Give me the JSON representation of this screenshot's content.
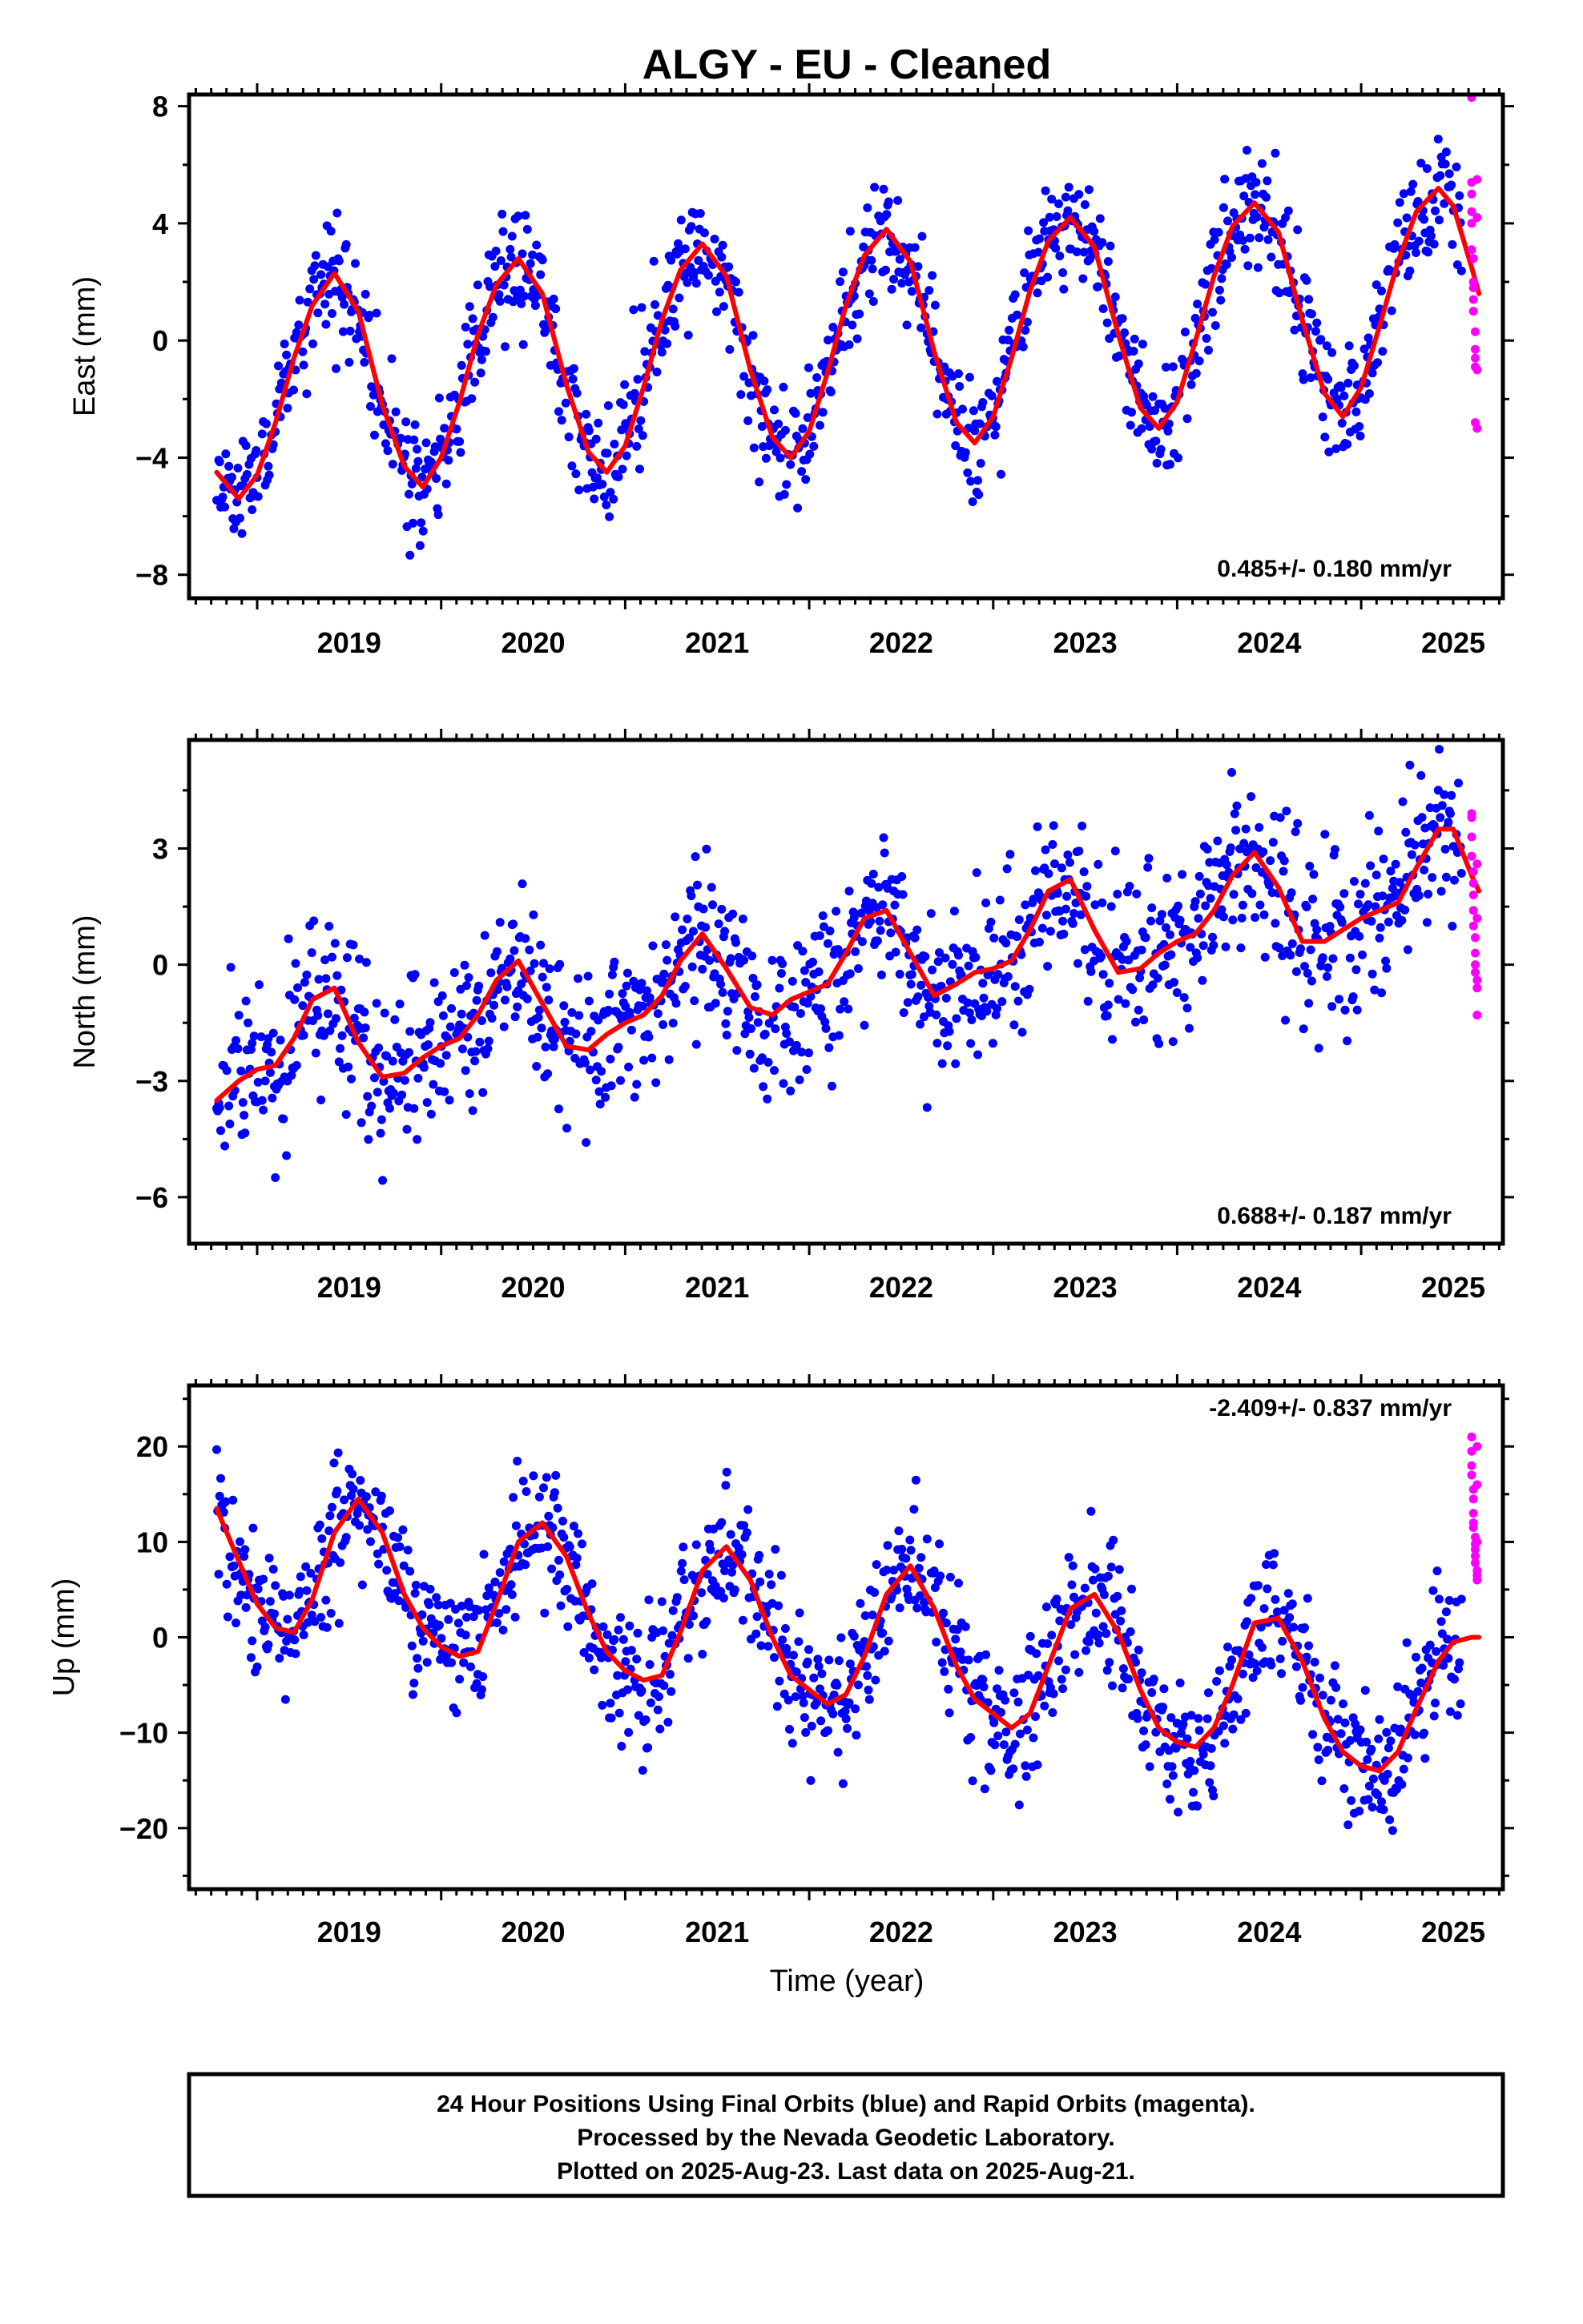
{
  "title": "ALGY  - EU - Cleaned",
  "xlabel": "Time (year)",
  "footer": {
    "line1": "24 Hour Positions Using Final Orbits (blue) and Rapid Orbits (magenta).",
    "line2": "Processed by the Nevada Geodetic Laboratory.",
    "line3": "Plotted on 2025-Aug-23. Last data on 2025-Aug-21."
  },
  "colors": {
    "final": "#0000ff",
    "rapid": "#ff00ff",
    "fit": "#ff0000",
    "frame": "#000000"
  },
  "chart_data": [
    {
      "type": "scatter",
      "component": "east",
      "ylabel": "East (mm)",
      "rate_label": "0.485+/- 0.180 mm/yr",
      "xlim": [
        2018.63,
        2025.77
      ],
      "ylim": [
        -8.8,
        8.4
      ],
      "x_ticks": [
        2019,
        2020,
        2021,
        2022,
        2023,
        2024,
        2025
      ],
      "y_ticks": [
        -8,
        -4,
        0,
        4,
        8
      ],
      "y_tick_labels": [
        "−8",
        "−4",
        "0",
        "4",
        "8"
      ],
      "fit": {
        "name": "model",
        "x": [
          2018.78,
          2018.9,
          2019.0,
          2019.1,
          2019.2,
          2019.3,
          2019.42,
          2019.55,
          2019.68,
          2019.8,
          2019.9,
          2020.0,
          2020.1,
          2020.2,
          2020.3,
          2020.42,
          2020.55,
          2020.68,
          2020.8,
          2020.9,
          2021.0,
          2021.1,
          2021.2,
          2021.3,
          2021.42,
          2021.55,
          2021.68,
          2021.8,
          2021.9,
          2022.0,
          2022.1,
          2022.2,
          2022.3,
          2022.42,
          2022.55,
          2022.68,
          2022.8,
          2022.9,
          2023.0,
          2023.1,
          2023.2,
          2023.3,
          2023.42,
          2023.55,
          2023.68,
          2023.8,
          2023.9,
          2024.0,
          2024.1,
          2024.2,
          2024.3,
          2024.42,
          2024.55,
          2024.68,
          2024.8,
          2024.9,
          2025.0,
          2025.1,
          2025.2,
          2025.3,
          2025.42,
          2025.5,
          2025.6,
          2025.64
        ],
        "values": [
          -4.5,
          -5.4,
          -4.6,
          -2.8,
          -0.6,
          1.2,
          2.3,
          1.0,
          -2.2,
          -4.3,
          -5.0,
          -4.0,
          -2.1,
          0.2,
          1.9,
          2.8,
          1.6,
          -1.5,
          -3.8,
          -4.5,
          -3.6,
          -1.6,
          0.7,
          2.4,
          3.3,
          2.2,
          -1.0,
          -3.3,
          -4.0,
          -3.1,
          -1.1,
          1.2,
          2.9,
          3.8,
          2.7,
          -0.4,
          -2.8,
          -3.5,
          -2.6,
          -0.6,
          1.7,
          3.4,
          4.2,
          3.2,
          0.2,
          -2.3,
          -3.0,
          -2.1,
          0.0,
          2.2,
          3.9,
          4.7,
          3.7,
          0.7,
          -1.8,
          -2.6,
          -1.6,
          0.5,
          2.7,
          4.4,
          5.2,
          4.6,
          2.5,
          1.6
        ]
      },
      "series": [
        {
          "name": "Final Orbits",
          "color": "#0000ff",
          "model": "seasonal",
          "x_range": [
            2018.78,
            2025.55
          ],
          "step": 0.0055,
          "seed": 11,
          "noise": 1.0
        },
        {
          "name": "Rapid Orbits",
          "color": "#ff00ff",
          "x": [
            2025.6,
            2025.6,
            2025.6,
            2025.6,
            2025.6,
            2025.6,
            2025.61,
            2025.61,
            2025.61,
            2025.61,
            2025.61,
            2025.62,
            2025.62,
            2025.62,
            2025.62,
            2025.62,
            2025.63,
            2025.63,
            2025.63,
            2025.63
          ],
          "values": [
            8.3,
            5.4,
            5.0,
            4.4,
            4.0,
            3.1,
            2.8,
            2.0,
            1.8,
            1.4,
            1.0,
            0.3,
            -0.3,
            -0.6,
            -0.9,
            -2.8,
            -3.0,
            5.5,
            4.2,
            -1.0
          ]
        }
      ]
    },
    {
      "type": "scatter",
      "component": "north",
      "ylabel": "North (mm)",
      "rate_label": "0.688+/- 0.187 mm/yr",
      "xlim": [
        2018.63,
        2025.77
      ],
      "ylim": [
        -7.2,
        5.8
      ],
      "x_ticks": [
        2019,
        2020,
        2021,
        2022,
        2023,
        2024,
        2025
      ],
      "y_ticks": [
        -6,
        -3,
        0,
        3
      ],
      "y_tick_labels": [
        "−6",
        "−3",
        "0",
        "3"
      ],
      "fit": {
        "name": "model",
        "x": [
          2018.78,
          2018.9,
          2019.0,
          2019.1,
          2019.2,
          2019.3,
          2019.42,
          2019.55,
          2019.68,
          2019.8,
          2019.9,
          2020.0,
          2020.1,
          2020.2,
          2020.3,
          2020.42,
          2020.55,
          2020.68,
          2020.8,
          2020.9,
          2021.0,
          2021.1,
          2021.2,
          2021.3,
          2021.42,
          2021.55,
          2021.68,
          2021.8,
          2021.9,
          2022.0,
          2022.1,
          2022.2,
          2022.3,
          2022.42,
          2022.55,
          2022.68,
          2022.8,
          2022.9,
          2023.0,
          2023.1,
          2023.2,
          2023.3,
          2023.42,
          2023.55,
          2023.68,
          2023.8,
          2023.9,
          2024.0,
          2024.1,
          2024.2,
          2024.3,
          2024.42,
          2024.55,
          2024.68,
          2024.8,
          2024.9,
          2025.0,
          2025.1,
          2025.2,
          2025.3,
          2025.42,
          2025.5,
          2025.6,
          2025.64
        ],
        "values": [
          -3.5,
          -3.0,
          -2.7,
          -2.6,
          -1.9,
          -0.9,
          -0.6,
          -2.0,
          -2.9,
          -2.8,
          -2.4,
          -2.1,
          -1.9,
          -1.3,
          -0.4,
          0.1,
          -1.0,
          -2.1,
          -2.2,
          -1.8,
          -1.5,
          -1.3,
          -0.8,
          0.1,
          0.8,
          -0.1,
          -1.1,
          -1.3,
          -0.9,
          -0.7,
          -0.5,
          0.3,
          1.2,
          1.4,
          0.3,
          -0.8,
          -0.5,
          -0.2,
          -0.1,
          0.1,
          0.9,
          1.9,
          2.2,
          0.9,
          -0.2,
          -0.1,
          0.3,
          0.6,
          0.8,
          1.4,
          2.3,
          2.9,
          2.0,
          0.6,
          0.6,
          0.9,
          1.2,
          1.4,
          1.6,
          2.5,
          3.5,
          3.5,
          2.3,
          1.9
        ]
      },
      "series": [
        {
          "name": "Final Orbits",
          "color": "#0000ff",
          "model": "seasonal",
          "x_range": [
            2018.78,
            2025.55
          ],
          "step": 0.0055,
          "seed": 29,
          "noise": 1.05
        },
        {
          "name": "Rapid Orbits",
          "color": "#ff00ff",
          "x": [
            2025.6,
            2025.6,
            2025.6,
            2025.6,
            2025.61,
            2025.61,
            2025.61,
            2025.61,
            2025.61,
            2025.62,
            2025.62,
            2025.62,
            2025.62,
            2025.63,
            2025.63,
            2025.63,
            2025.63,
            2025.63
          ],
          "values": [
            3.9,
            3.8,
            3.3,
            2.8,
            2.4,
            2.1,
            1.8,
            1.4,
            1.0,
            0.7,
            0.3,
            0.0,
            -0.2,
            -0.6,
            -1.3,
            2.6,
            1.2,
            -0.4
          ]
        }
      ]
    },
    {
      "type": "scatter",
      "component": "up",
      "ylabel": "Up (mm)",
      "rate_label": "-2.409+/- 0.837 mm/yr",
      "xlim": [
        2018.63,
        2025.77
      ],
      "ylim": [
        -26.4,
        26.4
      ],
      "x_ticks": [
        2019,
        2020,
        2021,
        2022,
        2023,
        2024,
        2025
      ],
      "y_ticks": [
        -20,
        -10,
        0,
        10,
        20
      ],
      "y_tick_labels": [
        "−20",
        "−10",
        "0",
        "10",
        "20"
      ],
      "fit": {
        "name": "model",
        "x": [
          2018.78,
          2018.9,
          2019.0,
          2019.1,
          2019.2,
          2019.3,
          2019.42,
          2019.55,
          2019.68,
          2019.8,
          2019.9,
          2020.0,
          2020.1,
          2020.2,
          2020.3,
          2020.42,
          2020.55,
          2020.68,
          2020.8,
          2020.9,
          2021.0,
          2021.1,
          2021.2,
          2021.3,
          2021.42,
          2021.55,
          2021.68,
          2021.8,
          2021.9,
          2022.0,
          2022.1,
          2022.2,
          2022.3,
          2022.42,
          2022.55,
          2022.68,
          2022.8,
          2022.9,
          2023.0,
          2023.1,
          2023.2,
          2023.3,
          2023.42,
          2023.55,
          2023.68,
          2023.8,
          2023.9,
          2024.0,
          2024.1,
          2024.2,
          2024.3,
          2024.42,
          2024.55,
          2024.68,
          2024.8,
          2024.9,
          2025.0,
          2025.1,
          2025.2,
          2025.3,
          2025.42,
          2025.5,
          2025.6,
          2025.64
        ],
        "values": [
          13.5,
          8.0,
          3.5,
          1.0,
          0.5,
          4.0,
          11.0,
          14.5,
          11.0,
          4.5,
          1.0,
          -1.0,
          -2.0,
          -1.5,
          3.5,
          10.0,
          12.0,
          8.5,
          2.5,
          -1.5,
          -3.5,
          -4.5,
          -4.0,
          0.5,
          7.0,
          9.5,
          6.0,
          0.0,
          -4.0,
          -5.5,
          -7.0,
          -6.0,
          -2.0,
          4.5,
          7.5,
          3.0,
          -3.0,
          -6.5,
          -8.0,
          -9.5,
          -8.0,
          -3.0,
          3.0,
          4.5,
          0.5,
          -5.5,
          -9.5,
          -11.0,
          -11.5,
          -9.5,
          -5.0,
          1.5,
          2.0,
          -2.5,
          -8.5,
          -12.0,
          -13.5,
          -14.0,
          -12.0,
          -7.5,
          -2.5,
          -0.5,
          0.0,
          0.0
        ]
      },
      "series": [
        {
          "name": "Final Orbits",
          "color": "#0000ff",
          "model": "seasonal",
          "x_range": [
            2018.78,
            2025.55
          ],
          "step": 0.0055,
          "seed": 53,
          "noise": 3.6
        },
        {
          "name": "Rapid Orbits",
          "color": "#ff00ff",
          "x": [
            2025.6,
            2025.6,
            2025.6,
            2025.6,
            2025.61,
            2025.61,
            2025.61,
            2025.61,
            2025.61,
            2025.62,
            2025.62,
            2025.62,
            2025.62,
            2025.62,
            2025.63,
            2025.63,
            2025.63,
            2025.63,
            2025.63,
            2025.63
          ],
          "values": [
            21.0,
            19.5,
            18.0,
            17.0,
            15.5,
            14.5,
            13.0,
            12.0,
            11.5,
            10.5,
            9.8,
            9.2,
            8.5,
            7.8,
            7.0,
            6.5,
            20.0,
            16.0,
            10.0,
            6.0
          ]
        }
      ]
    }
  ]
}
